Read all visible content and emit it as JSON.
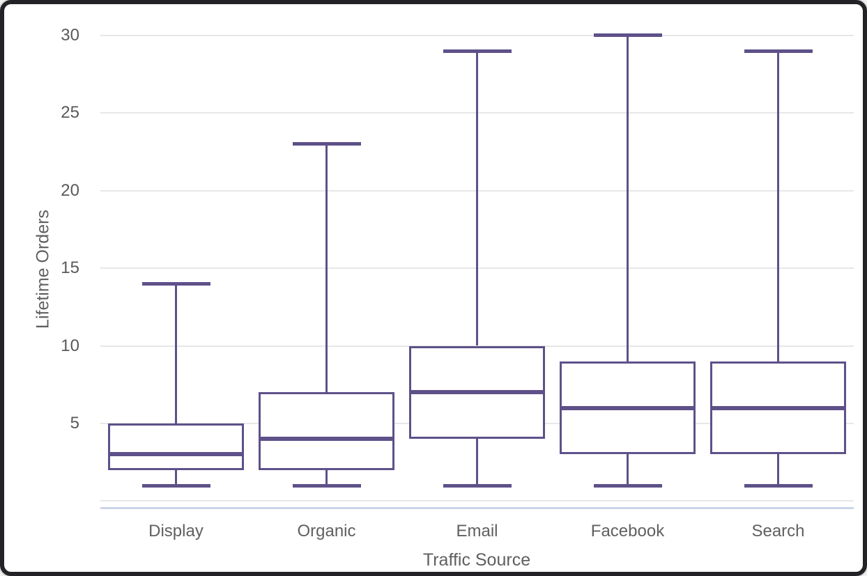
{
  "chart_data": {
    "type": "box",
    "title": "",
    "xlabel": "Traffic Source",
    "ylabel": "Lifetime Orders",
    "categories": [
      "Display",
      "Organic",
      "Email",
      "Facebook",
      "Search"
    ],
    "boxes": [
      {
        "category": "Display",
        "min": 1,
        "q1": 2,
        "median": 3,
        "q3": 5,
        "max": 14
      },
      {
        "category": "Organic",
        "min": 1,
        "q1": 2,
        "median": 4,
        "q3": 7,
        "max": 23
      },
      {
        "category": "Email",
        "min": 1,
        "q1": 4,
        "median": 7,
        "q3": 10,
        "max": 29
      },
      {
        "category": "Facebook",
        "min": 1,
        "q1": 3,
        "median": 6,
        "q3": 9,
        "max": 29
      },
      {
        "category": "Search",
        "min": 1,
        "q1": 3,
        "median": 6,
        "q3": 9,
        "max": 29
      }
    ],
    "ytick_labels": [
      "5",
      "10",
      "15",
      "20",
      "25",
      "30"
    ],
    "yticks": [
      5,
      10,
      15,
      20,
      25,
      30
    ],
    "gridline_values": [
      0,
      5,
      10,
      15,
      20,
      25,
      30
    ],
    "ylim": [
      0,
      30
    ],
    "grid": true,
    "legend": "none"
  },
  "colors": {
    "box_stroke": "#5e5189",
    "median": "#5e5189",
    "whisker": "#5e5189",
    "gridline": "#e7e7e7",
    "axis_baseline": "#ccd5ea",
    "tick_text": "#595959",
    "label_text": "#606060",
    "frame_border": "#232327",
    "box_fill": "#ffffff",
    "background": "#ffffff"
  },
  "facebook_max_actual": 30
}
